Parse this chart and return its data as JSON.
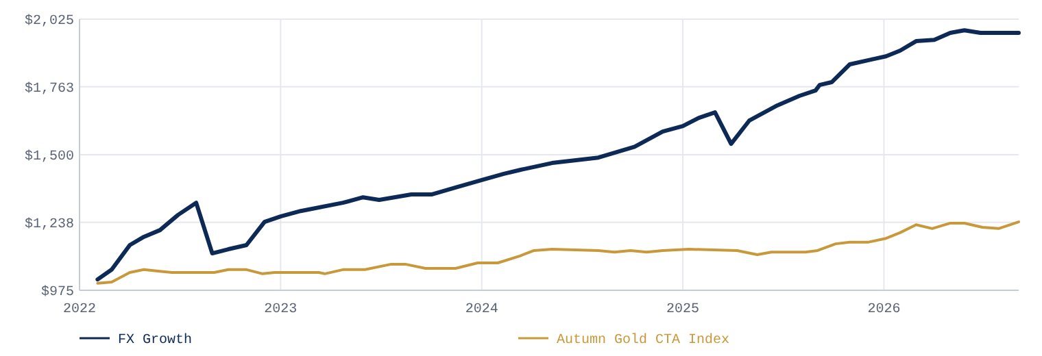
{
  "chart_data": {
    "type": "line",
    "x": [
      2022.09,
      2022.16,
      2022.25,
      2022.32,
      2022.4,
      2022.49,
      2022.58,
      2022.66,
      2022.74,
      2022.83,
      2022.92,
      2023.0,
      2023.1,
      2023.31,
      2023.41,
      2023.49,
      2023.65,
      2023.75,
      2023.87,
      2024.01,
      2024.11,
      2024.19,
      2024.35,
      2024.58,
      2024.76,
      2024.9,
      2025.0,
      2025.08,
      2025.16,
      2025.24,
      2025.33,
      2025.47,
      2025.58,
      2025.66,
      2025.68,
      2025.74,
      2025.83,
      2025.95,
      2026.01,
      2026.08,
      2026.16,
      2026.25,
      2026.33,
      2026.4,
      2026.48,
      2026.67
    ],
    "series": [
      {
        "name": "FX Growth",
        "color": "#0c2a55",
        "values": [
          1017,
          1055,
          1150,
          1182,
          1208,
          1267,
          1314,
          1118,
          1134,
          1150,
          1240,
          1261,
          1282,
          1314,
          1335,
          1325,
          1346,
          1346,
          1373,
          1404,
          1426,
          1441,
          1468,
          1489,
          1531,
          1590,
          1611,
          1643,
          1664,
          1542,
          1632,
          1691,
          1728,
          1749,
          1770,
          1781,
          1850,
          1871,
          1881,
          1903,
          1940,
          1945,
          1972,
          1982,
          1972,
          1972
        ]
      },
      {
        "name": "Autumn Gold CTA Index",
        "color": "#c8993a",
        "x": [
          2022.09,
          2022.16,
          2022.25,
          2022.32,
          2022.39,
          2022.46,
          2022.67,
          2022.74,
          2022.83,
          2022.91,
          2022.97,
          2023.19,
          2023.22,
          2023.31,
          2023.42,
          2023.55,
          2023.62,
          2023.72,
          2023.87,
          2023.98,
          2024.08,
          2024.19,
          2024.26,
          2024.35,
          2024.58,
          2024.66,
          2024.74,
          2024.82,
          2024.9,
          2025.03,
          2025.27,
          2025.37,
          2025.44,
          2025.61,
          2025.67,
          2025.76,
          2025.83,
          2025.92,
          2026.01,
          2026.08,
          2026.16,
          2026.24,
          2026.33,
          2026.4,
          2026.49,
          2026.57,
          2026.67
        ],
        "values": [
          1002,
          1007,
          1044,
          1055,
          1049,
          1044,
          1044,
          1055,
          1055,
          1039,
          1044,
          1044,
          1039,
          1055,
          1055,
          1076,
          1076,
          1060,
          1060,
          1081,
          1081,
          1108,
          1129,
          1134,
          1129,
          1123,
          1129,
          1123,
          1129,
          1134,
          1129,
          1113,
          1123,
          1123,
          1129,
          1155,
          1161,
          1161,
          1176,
          1198,
          1229,
          1214,
          1235,
          1235,
          1219,
          1214,
          1240
        ]
      }
    ],
    "xlim": [
      2022,
      2026.67
    ],
    "xticks": [
      2022,
      2023,
      2024,
      2025,
      2026
    ],
    "ylim": [
      975,
      2025
    ],
    "yticks": [
      {
        "value": 975,
        "label": "$975"
      },
      {
        "value": 1238,
        "label": "$1,238"
      },
      {
        "value": 1500,
        "label": "$1,500"
      },
      {
        "value": 1763,
        "label": "$1,763"
      },
      {
        "value": 2025,
        "label": "$2,025"
      }
    ],
    "grid": true,
    "legend": "bottom",
    "marker": "none",
    "line_style": "solid"
  }
}
